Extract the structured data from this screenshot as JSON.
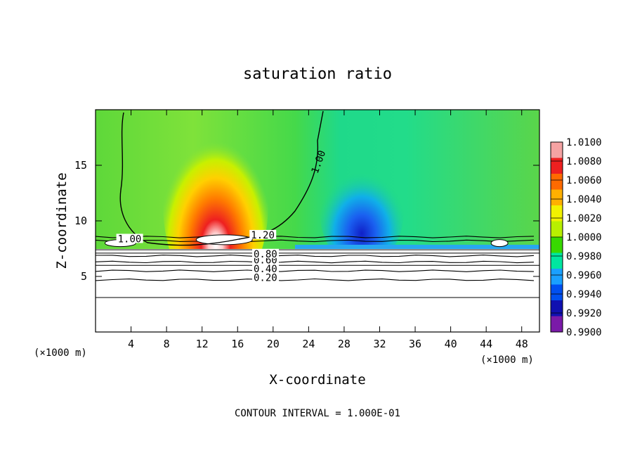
{
  "chart_data": {
    "type": "heatmap",
    "title": "saturation ratio",
    "xlabel": "X-coordinate",
    "ylabel": "Z-coordinate",
    "x_unit_left": "(×1000 m)",
    "x_unit_right": "(×1000 m)",
    "footer": "CONTOUR INTERVAL = 1.000E-01",
    "xlim": [
      0,
      50
    ],
    "ylim": [
      0,
      20
    ],
    "x_ticks": [
      4,
      8,
      12,
      16,
      20,
      24,
      28,
      32,
      36,
      40,
      44,
      48
    ],
    "x_tick_labels": [
      "4",
      "8",
      "12",
      "16",
      "20",
      "24",
      "28",
      "32",
      "36",
      "40",
      "44",
      "48"
    ],
    "y_ticks": [
      5,
      10,
      15
    ],
    "y_tick_labels": [
      "5",
      "10",
      "15"
    ],
    "colorbar": {
      "min": 0.99,
      "max": 1.01,
      "labels": [
        "1.0100",
        "1.0080",
        "1.0060",
        "1.0040",
        "1.0020",
        "1.0000",
        "0.9980",
        "0.9960",
        "0.9940",
        "0.9920",
        "0.9900"
      ],
      "colors": [
        "#f5a3a3",
        "#ee2020",
        "#ff6a00",
        "#ffb000",
        "#f2f200",
        "#b8f000",
        "#38d900",
        "#00e6a0",
        "#1aa0ff",
        "#0050f0",
        "#1010b0",
        "#7a1aa8"
      ]
    },
    "features": [
      {
        "name": "warm-plume",
        "x_center": 13.5,
        "z_bottom": 8.5,
        "z_top": 16,
        "peak": 1.01
      },
      {
        "name": "cool-region",
        "x_center": 30,
        "z_bottom": 7.5,
        "z_top": 13,
        "min": 0.9925
      }
    ],
    "contours": [
      {
        "level": 0.2,
        "label": "0.20",
        "z": 4.7,
        "label_x": 17.8
      },
      {
        "level": 0.4,
        "label": "0.40",
        "z": 5.5,
        "label_x": 17.8
      },
      {
        "level": 0.6,
        "label": "0.60",
        "z": 6.3,
        "label_x": 17.8
      },
      {
        "level": 0.8,
        "label": "0.80",
        "z": 6.85,
        "label_x": 17.8
      },
      {
        "level": 1.0,
        "label": "1.00",
        "z": 8.2,
        "label_x": 2.5
      },
      {
        "level": 1.2,
        "label": "1.20",
        "z": 8.55,
        "label_x": 17.5
      }
    ],
    "contour_upper_label": {
      "label": "1.00",
      "x": 25,
      "z": 14.2
    }
  }
}
